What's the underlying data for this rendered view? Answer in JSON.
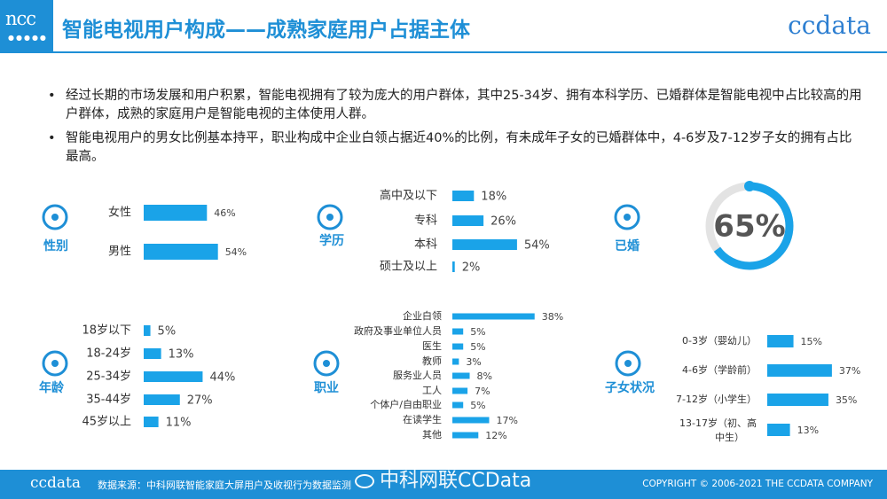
{
  "header": {
    "logo": "ncc",
    "title": "智能电视用户构成——成熟家庭用户占据主体",
    "brand": "ccdata"
  },
  "bullets": [
    "经过长期的市场发展和用户积累，智能电视拥有了较为庞大的用户群体，其中25-34岁、拥有本科学历、已婚群体是智能电视中占比较高的用户群体，成熟的家庭用户是智能电视的主体使用人群。",
    "智能电视用户的男女比例基本持平，职业构成中企业白领占据近40%的比例，有未成年子女的已婚群体中，4-6岁及7-12岁子女的拥有占比最高。"
  ],
  "colors": {
    "accent": "#1e8fd6",
    "bar": "#1aa3e8",
    "ring_bg": "#e3e3e3"
  },
  "chart_data": [
    {
      "type": "bar",
      "title": "性别",
      "icon": "gender-icon",
      "categories": [
        "女性",
        "男性"
      ],
      "values": [
        46,
        54
      ],
      "labels": [
        "46%",
        "54%"
      ]
    },
    {
      "type": "bar",
      "title": "学历",
      "icon": "education-icon",
      "categories": [
        "高中及以下",
        "专科",
        "本科",
        "硕士及以上"
      ],
      "values": [
        18,
        26,
        54,
        2
      ],
      "labels": [
        "18%",
        "26%",
        "54%",
        "2%"
      ]
    },
    {
      "type": "pie",
      "title": "已婚",
      "icon": "rings-icon",
      "value": 65,
      "label": "65%"
    },
    {
      "type": "bar",
      "title": "年龄",
      "icon": "age-icon",
      "categories": [
        "18岁以下",
        "18-24岁",
        "25-34岁",
        "35-44岁",
        "45岁以上"
      ],
      "values": [
        5,
        13,
        44,
        27,
        11
      ],
      "labels": [
        "5%",
        "13%",
        "44%",
        "27%",
        "11%"
      ]
    },
    {
      "type": "bar",
      "title": "职业",
      "icon": "id-card-icon",
      "categories": [
        "企业白领",
        "政府及事业单位人员",
        "医生",
        "教师",
        "服务业人员",
        "工人",
        "个体户/自由职业",
        "在读学生",
        "其他"
      ],
      "values": [
        38,
        5,
        5,
        3,
        8,
        7,
        5,
        17,
        12
      ],
      "labels": [
        "38%",
        "5%",
        "5%",
        "3%",
        "8%",
        "7%",
        "5%",
        "17%",
        "12%"
      ]
    },
    {
      "type": "bar",
      "title": "子女状况",
      "icon": "stroller-icon",
      "categories": [
        "0-3岁（婴幼儿）",
        "4-6岁（学龄前）",
        "7-12岁（小学生）",
        "13-17岁（初、高中生）"
      ],
      "values": [
        15,
        37,
        35,
        13
      ],
      "labels": [
        "15%",
        "37%",
        "35%",
        "13%"
      ]
    }
  ],
  "footer": {
    "brand": "ccdata",
    "source": "数据来源：中科网联智能家庭大屏用户及收视行为数据监测",
    "watermark": "中科网联CCData",
    "copyright": "COPYRIGHT © 2006-2021 THE CCDATA COMPANY"
  }
}
